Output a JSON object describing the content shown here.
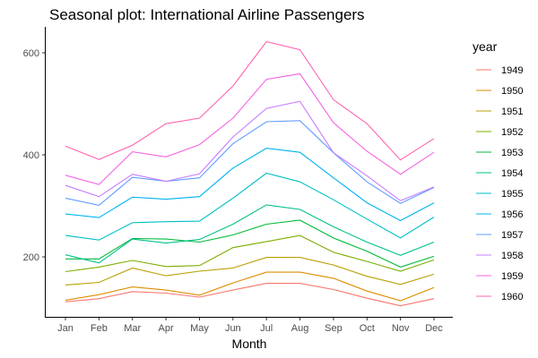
{
  "chart_data": {
    "type": "line",
    "title": "Seasonal plot: International Airline Passengers",
    "xlabel": "Month",
    "ylabel": "",
    "categories": [
      "Jan",
      "Feb",
      "Mar",
      "Apr",
      "May",
      "Jun",
      "Jul",
      "Aug",
      "Sep",
      "Oct",
      "Nov",
      "Dec"
    ],
    "yticks": [
      200,
      400,
      600
    ],
    "ylim": [
      80,
      645
    ],
    "grid": false,
    "legend": {
      "title": "year",
      "placement": "right"
    },
    "series": [
      {
        "name": "1949",
        "color": "#F8766D",
        "values": [
          112,
          118,
          132,
          129,
          121,
          135,
          148,
          148,
          136,
          119,
          104,
          118
        ]
      },
      {
        "name": "1950",
        "color": "#DE8C00",
        "values": [
          115,
          126,
          141,
          135,
          125,
          149,
          170,
          170,
          158,
          133,
          114,
          140
        ]
      },
      {
        "name": "1951",
        "color": "#B79F00",
        "values": [
          145,
          150,
          178,
          163,
          172,
          178,
          199,
          199,
          184,
          162,
          146,
          166
        ]
      },
      {
        "name": "1952",
        "color": "#7CAE00",
        "values": [
          171,
          180,
          193,
          181,
          183,
          218,
          230,
          242,
          209,
          191,
          172,
          194
        ]
      },
      {
        "name": "1953",
        "color": "#00BA38",
        "values": [
          196,
          196,
          236,
          235,
          229,
          243,
          264,
          272,
          237,
          211,
          180,
          201
        ]
      },
      {
        "name": "1954",
        "color": "#00C08B",
        "values": [
          204,
          188,
          235,
          227,
          234,
          264,
          302,
          293,
          259,
          229,
          203,
          229
        ]
      },
      {
        "name": "1955",
        "color": "#00BFC4",
        "values": [
          242,
          233,
          267,
          269,
          270,
          315,
          364,
          347,
          312,
          274,
          237,
          278
        ]
      },
      {
        "name": "1956",
        "color": "#00B4F0",
        "values": [
          284,
          277,
          317,
          313,
          318,
          374,
          413,
          405,
          355,
          306,
          271,
          306
        ]
      },
      {
        "name": "1957",
        "color": "#619CFF",
        "values": [
          315,
          301,
          356,
          348,
          355,
          422,
          465,
          467,
          404,
          347,
          305,
          336
        ]
      },
      {
        "name": "1958",
        "color": "#C77CFF",
        "values": [
          340,
          318,
          362,
          348,
          363,
          435,
          491,
          505,
          404,
          359,
          310,
          337
        ]
      },
      {
        "name": "1959",
        "color": "#F564E3",
        "values": [
          360,
          342,
          406,
          396,
          420,
          472,
          548,
          559,
          463,
          407,
          362,
          405
        ]
      },
      {
        "name": "1960",
        "color": "#FF64B0",
        "values": [
          417,
          391,
          419,
          461,
          472,
          535,
          622,
          606,
          508,
          461,
          390,
          432
        ]
      }
    ]
  }
}
